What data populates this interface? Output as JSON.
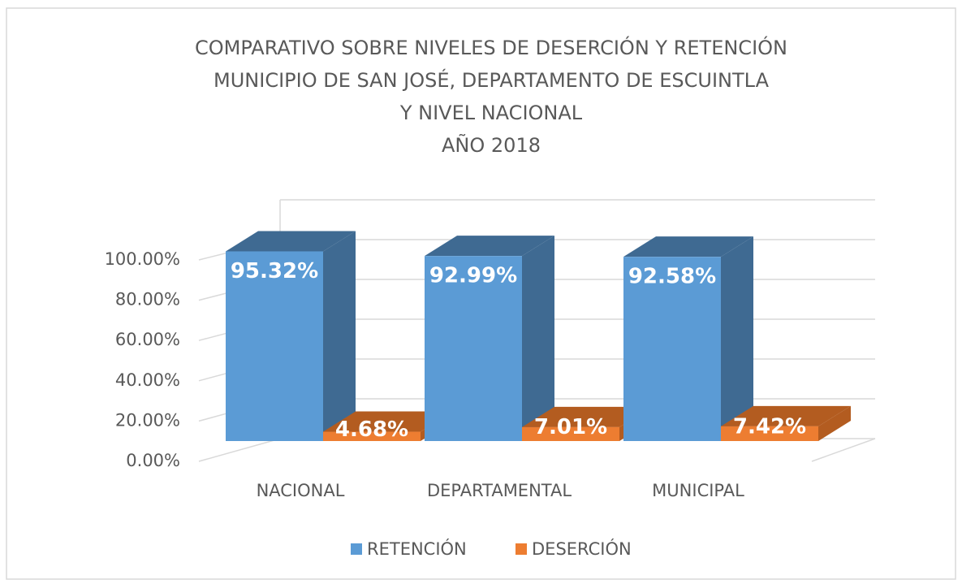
{
  "chart_data": {
    "type": "bar3d",
    "title": [
      "COMPARATIVO SOBRE NIVELES DE DESERCIÓN Y RETENCIÓN",
      "MUNICIPIO DE SAN JOSÉ, DEPARTAMENTO DE ESCUINTLA",
      "Y NIVEL NACIONAL",
      "AÑO 2018"
    ],
    "categories": [
      "NACIONAL",
      "DEPARTAMENTAL",
      "MUNICIPAL"
    ],
    "series": [
      {
        "name": "RETENCIÓN",
        "color": "#5b9bd5",
        "side": "#3f6a92",
        "values": [
          95.32,
          92.99,
          92.58
        ],
        "value_labels": [
          "95.32%",
          "92.99%",
          "92.58%"
        ]
      },
      {
        "name": "DESERCIÓN",
        "color": "#ed7d31",
        "side": "#b35c20",
        "values": [
          4.68,
          7.01,
          7.42
        ],
        "value_labels": [
          "4.68%",
          "7.01%",
          "7.42%"
        ]
      }
    ],
    "ylim": [
      0,
      100
    ],
    "yticks": [
      {
        "value": 0,
        "label": "0.00%"
      },
      {
        "value": 20,
        "label": "20.00%"
      },
      {
        "value": 40,
        "label": "40.00%"
      },
      {
        "value": 60,
        "label": "60.00%"
      },
      {
        "value": 80,
        "label": "80.00%"
      },
      {
        "value": 100,
        "label": "100.00%"
      }
    ],
    "grid": true,
    "legend": "bottom"
  }
}
